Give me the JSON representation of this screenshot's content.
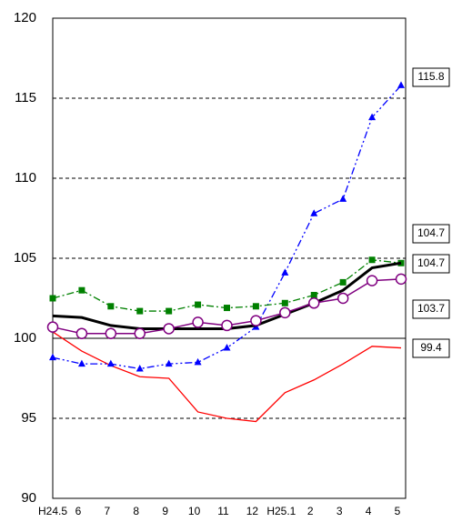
{
  "chart_data": {
    "type": "line",
    "categories": [
      "H24.5",
      "6",
      "7",
      "8",
      "9",
      "10",
      "11",
      "12",
      "H25.1",
      "2",
      "3",
      "4",
      "5"
    ],
    "ylim": [
      90,
      120
    ],
    "yticks": [
      90,
      95,
      100,
      105,
      110,
      115,
      120
    ],
    "series": [
      {
        "color": "#ff0000",
        "values": [
          100.4,
          99.2,
          98.3,
          97.6,
          97.5,
          95.4,
          95.0,
          94.8,
          96.6,
          97.4,
          98.4,
          99.5,
          99.4
        ]
      },
      {
        "color": "#0000ff",
        "values": [
          98.8,
          98.4,
          98.4,
          98.1,
          98.4,
          98.5,
          99.4,
          100.7,
          104.1,
          107.8,
          108.7,
          113.8,
          115.8
        ]
      },
      {
        "color": "#008000",
        "values": [
          102.5,
          103.0,
          102.0,
          101.7,
          101.7,
          102.1,
          101.9,
          102.0,
          102.2,
          102.7,
          103.5,
          104.9,
          104.7
        ]
      },
      {
        "color": "#000000",
        "values": [
          101.4,
          101.3,
          100.8,
          100.6,
          100.6,
          100.6,
          100.6,
          100.8,
          101.5,
          102.2,
          103.0,
          104.4,
          104.7
        ]
      },
      {
        "color": "#800080",
        "values": [
          100.7,
          100.3,
          100.3,
          100.3,
          100.6,
          101.0,
          100.8,
          101.1,
          101.6,
          102.2,
          102.5,
          103.6,
          103.7
        ]
      }
    ]
  }
}
